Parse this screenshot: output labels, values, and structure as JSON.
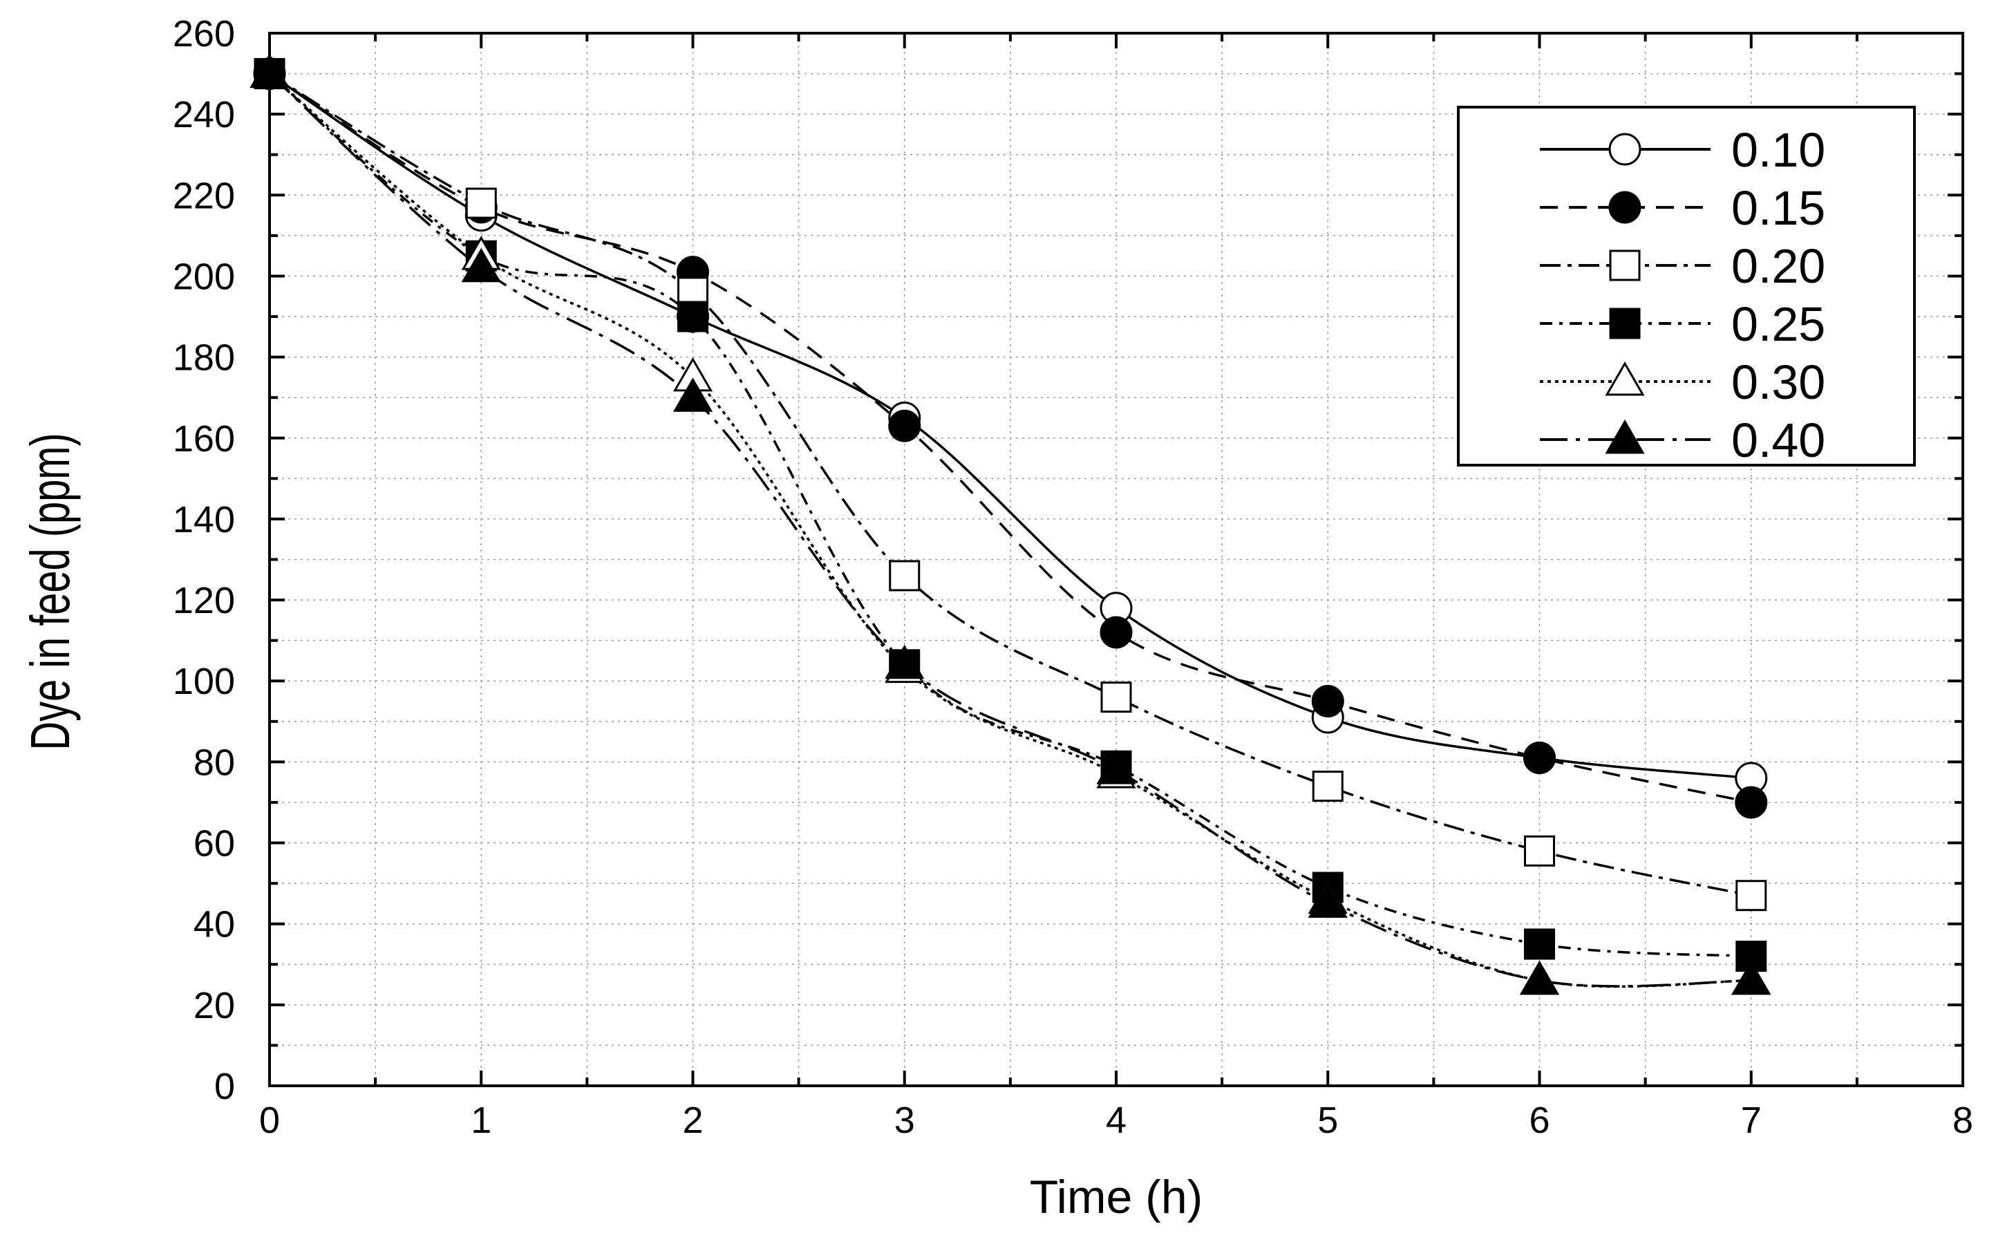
{
  "chart_data": {
    "type": "line",
    "title": "",
    "xlabel": "Time (h)",
    "ylabel": "Dye in feed (ppm)",
    "xlim": [
      0,
      8
    ],
    "ylim": [
      0,
      260
    ],
    "xticks": [
      0,
      1,
      2,
      3,
      4,
      5,
      6,
      7,
      8
    ],
    "yticks": [
      0,
      20,
      40,
      60,
      80,
      100,
      120,
      140,
      160,
      180,
      200,
      220,
      240,
      260
    ],
    "grid": true,
    "legend_position": "top-right",
    "x": [
      0,
      1,
      2,
      3,
      4,
      5,
      6,
      7
    ],
    "series": [
      {
        "name": "0.10",
        "marker": "open-circle",
        "line": "solid",
        "values": [
          250,
          215,
          190,
          165,
          118,
          91,
          81,
          76
        ]
      },
      {
        "name": "0.15",
        "marker": "filled-circle",
        "line": "dash",
        "values": [
          250,
          217,
          201,
          163,
          112,
          95,
          81,
          70
        ]
      },
      {
        "name": "0.20",
        "marker": "open-square",
        "line": "dashdot",
        "values": [
          250,
          218,
          196,
          126,
          96,
          74,
          58,
          47
        ]
      },
      {
        "name": "0.25",
        "marker": "filled-square",
        "line": "dashdot-dense",
        "values": [
          250,
          205,
          190,
          104,
          79,
          49,
          35,
          32
        ]
      },
      {
        "name": "0.30",
        "marker": "open-triangle",
        "line": "dot",
        "values": [
          250,
          205,
          175,
          103,
          77,
          46,
          26,
          26
        ]
      },
      {
        "name": "0.40",
        "marker": "filled-triangle",
        "line": "dashdot-long",
        "values": [
          250,
          202,
          170,
          104,
          78,
          45,
          26,
          26
        ]
      }
    ]
  }
}
